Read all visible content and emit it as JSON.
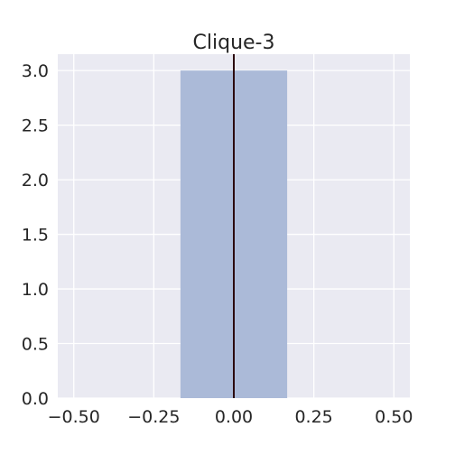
{
  "chart_data": {
    "type": "bar",
    "title": "Clique-3",
    "xlabel": "",
    "ylabel": "",
    "bars": [
      {
        "x_start": -0.1667,
        "x_end": 0.1667,
        "value": 3.0
      }
    ],
    "vline": {
      "x": 0.0
    },
    "xlim": [
      -0.55,
      0.55
    ],
    "ylim": [
      0.0,
      3.15
    ],
    "xticks": [
      -0.5,
      -0.25,
      0.0,
      0.25,
      0.5
    ],
    "xtick_labels": [
      "−0.50",
      "−0.25",
      "0.00",
      "0.25",
      "0.50"
    ],
    "yticks": [
      0.0,
      0.5,
      1.0,
      1.5,
      2.0,
      2.5,
      3.0
    ],
    "ytick_labels": [
      "0.0",
      "0.5",
      "1.0",
      "1.5",
      "2.0",
      "2.5",
      "3.0"
    ],
    "grid": true,
    "colors": {
      "background": "#eaeaf2",
      "grid": "#ffffff",
      "bar": "#abbad8",
      "vline": "#2b0a0f",
      "text": "#262626"
    }
  }
}
